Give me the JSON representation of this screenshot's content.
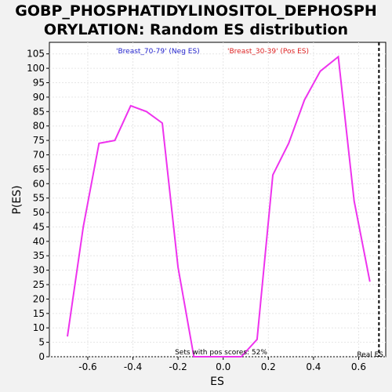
{
  "chart_data": {
    "type": "line",
    "title_lines": [
      "GOBP_PHOSPHATIDYLINOSITOL_DEPHOSPH",
      "ORYLATION: Random ES distribution"
    ],
    "xlabel": "ES",
    "ylabel": "P(ES)",
    "xlim": [
      -0.77,
      0.72
    ],
    "ylim": [
      0,
      109
    ],
    "x_ticks": [
      "-0.6",
      "-0.4",
      "-0.2",
      "0.0",
      "0.2",
      "0.4",
      "0.6"
    ],
    "x_tick_values": [
      -0.6,
      -0.4,
      -0.2,
      0.0,
      0.2,
      0.4,
      0.6
    ],
    "y_ticks": [
      0,
      5,
      10,
      15,
      20,
      25,
      30,
      35,
      40,
      45,
      50,
      55,
      60,
      65,
      70,
      75,
      80,
      85,
      90,
      95,
      100,
      105
    ],
    "grid": true,
    "series": [
      {
        "color": "#ee33ee",
        "x": [
          -0.69,
          -0.62,
          -0.55,
          -0.48,
          -0.41,
          -0.34,
          -0.27,
          -0.2,
          -0.13,
          -0.06,
          0.01,
          0.08,
          0.15,
          0.22,
          0.29,
          0.36,
          0.43,
          0.51,
          0.58,
          0.65
        ],
        "y": [
          7,
          45,
          74,
          75,
          87,
          85,
          81,
          31,
          0,
          0,
          0,
          0,
          6,
          63,
          74,
          89,
          99,
          104,
          54,
          26
        ]
      }
    ],
    "legend": [
      {
        "label": "'Breast_70-79' (Neg ES)",
        "color": "#2222cc"
      },
      {
        "label": "'Breast_30-39' (Pos ES)",
        "color": "#dd2222"
      }
    ],
    "annotations": {
      "pos_scores": "Sets with pos scores: 52%",
      "real_es_label": "Real ES",
      "real_es_value": 0.69
    }
  }
}
